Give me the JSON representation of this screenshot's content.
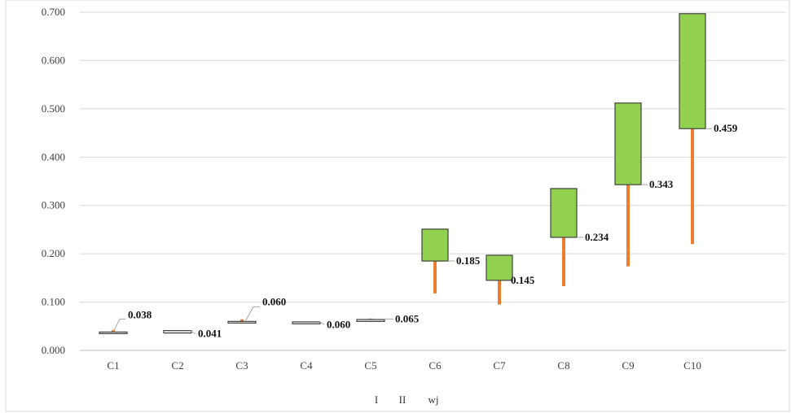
{
  "chart_data": {
    "type": "bar",
    "title": "",
    "xlabel": "",
    "ylabel": "",
    "ylim": [
      0,
      0.7
    ],
    "yticks": [
      "0.000",
      "0.100",
      "0.200",
      "0.300",
      "0.400",
      "0.500",
      "0.600",
      "0.700"
    ],
    "categories": [
      "C1",
      "C2",
      "C3",
      "C4",
      "C5",
      "C6",
      "C7",
      "C8",
      "C9",
      "C10"
    ],
    "series": [
      {
        "name": "I",
        "values": [
          0.038,
          0.041,
          0.06,
          0.058,
          0.066,
          0.118,
          0.095,
          0.133,
          0.174,
          0.22
        ]
      },
      {
        "name": "II",
        "values": [
          0.038,
          0.036,
          0.059,
          0.055,
          0.06,
          0.185,
          0.145,
          0.234,
          0.343,
          0.459
        ]
      },
      {
        "name": "wj",
        "values": [
          0.038,
          0.041,
          0.06,
          0.06,
          0.065,
          0.185,
          0.145,
          0.234,
          0.343,
          0.459
        ]
      }
    ],
    "box_top": [
      0.038,
      0.041,
      0.06,
      0.059,
      0.064,
      0.251,
      0.197,
      0.335,
      0.512,
      0.697
    ],
    "data_labels": [
      "0.038",
      "0.041",
      "0.060",
      "0.060",
      "0.065",
      "0.185",
      "0.145",
      "0.234",
      "0.343",
      "0.459"
    ],
    "legend": [
      "I",
      "II",
      "wj"
    ],
    "legend_position": "bottom",
    "grid": true,
    "colors": {
      "box": "#92d050",
      "box_stroke": "#404040",
      "whisker": "#ed7d31",
      "grid": "#d9d9d9",
      "axis": "#bfbfbf"
    }
  }
}
